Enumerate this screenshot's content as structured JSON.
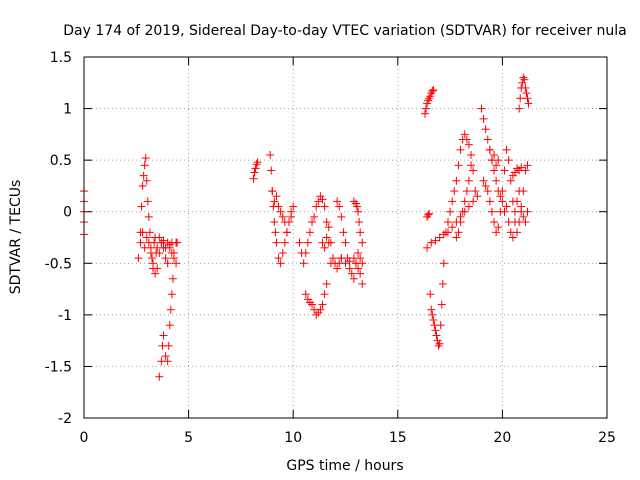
{
  "chart_data": {
    "type": "scatter",
    "title": "Day 174 of 2019, Sidereal Day-to-day VTEC variation (SDTVAR) for receiver nula",
    "xlabel": "GPS time / hours",
    "ylabel": "SDTVAR / TECUs",
    "xlim": [
      0,
      25
    ],
    "ylim": [
      -2,
      1.5
    ],
    "grid": true,
    "x_ticks": [
      0,
      5,
      10,
      15,
      20,
      25
    ],
    "y_ticks": [
      -2,
      -1.5,
      -1,
      -0.5,
      0,
      0.5,
      1,
      1.5
    ],
    "x_tick_labels": [
      "0",
      "5",
      "10",
      "15",
      "20",
      "25"
    ],
    "y_tick_labels": [
      "-2",
      "-1.5",
      "-1",
      "-0.5",
      "0",
      "0.5",
      "1",
      "1.5"
    ],
    "marker": "plus",
    "series": [
      {
        "name": "SDTVAR",
        "color": "#ff0000",
        "segments": [
          {
            "x": [
              0.0,
              0.0,
              0.0,
              0.0,
              0.0
            ],
            "y": [
              0.2,
              0.1,
              0.0,
              -0.1,
              -0.22
            ]
          },
          {
            "x": [
              2.6,
              2.7,
              2.75,
              2.8,
              2.85,
              2.9,
              2.95,
              3.0,
              3.05,
              3.1,
              3.15,
              3.2,
              3.25,
              3.3,
              3.35,
              3.4,
              3.45
            ],
            "y": [
              -0.45,
              -0.2,
              0.05,
              0.25,
              0.35,
              0.45,
              0.52,
              0.3,
              0.1,
              -0.05,
              -0.2,
              -0.35,
              -0.45,
              -0.55,
              -0.3,
              -0.25,
              -0.4
            ]
          },
          {
            "x": [
              2.7,
              2.8,
              2.9,
              3.0,
              3.1,
              3.2,
              3.3,
              3.4,
              3.5,
              3.6,
              3.7,
              3.8,
              3.9,
              4.0,
              4.1,
              4.2,
              4.3,
              4.4,
              4.45
            ],
            "y": [
              -0.3,
              -0.2,
              -0.35,
              -0.25,
              -0.3,
              -0.4,
              -0.5,
              -0.6,
              -0.55,
              -0.4,
              -0.3,
              -0.35,
              -0.45,
              -0.5,
              -0.35,
              -0.3,
              -0.4,
              -0.5,
              -0.3
            ]
          },
          {
            "x": [
              3.6,
              3.7,
              3.75,
              3.8,
              3.9,
              4.0,
              4.05,
              4.1,
              4.15,
              4.2,
              4.25
            ],
            "y": [
              -1.6,
              -1.45,
              -1.3,
              -1.2,
              -1.4,
              -1.45,
              -1.3,
              -1.1,
              -0.95,
              -0.8,
              -0.65
            ]
          },
          {
            "x": [
              3.5,
              3.6,
              3.7,
              3.8,
              3.9,
              4.0,
              4.1,
              4.2,
              4.3,
              4.4
            ],
            "y": [
              -0.35,
              -0.25,
              -0.3,
              -0.28,
              -0.35,
              -0.3,
              -0.32,
              -0.4,
              -0.45,
              -0.3
            ]
          },
          {
            "x": [
              8.1,
              8.15,
              8.2,
              8.25,
              8.3
            ],
            "y": [
              0.32,
              0.38,
              0.42,
              0.46,
              0.48
            ]
          },
          {
            "x": [
              8.9,
              8.95,
              9.0,
              9.05,
              9.1,
              9.15,
              9.2,
              9.3,
              9.4,
              9.5,
              9.6,
              9.7,
              9.8,
              9.9
            ],
            "y": [
              0.55,
              0.4,
              0.2,
              0.05,
              -0.1,
              -0.2,
              -0.3,
              -0.45,
              -0.5,
              -0.4,
              -0.3,
              -0.2,
              -0.1,
              -0.05
            ]
          },
          {
            "x": [
              9.0,
              9.1,
              9.2,
              9.3,
              9.4,
              9.5,
              9.6,
              9.7,
              9.8,
              9.9,
              10.0
            ],
            "y": [
              0.2,
              0.1,
              0.15,
              0.05,
              0.0,
              -0.05,
              -0.1,
              -0.2,
              -0.1,
              0.0,
              0.05
            ]
          },
          {
            "x": [
              10.3,
              10.4,
              10.5,
              10.6,
              10.7,
              10.8,
              10.9,
              11.0,
              11.1,
              11.2,
              11.3,
              11.4,
              11.5,
              11.6,
              11.7,
              11.8
            ],
            "y": [
              -0.3,
              -0.4,
              -0.5,
              -0.4,
              -0.3,
              -0.2,
              -0.1,
              -0.05,
              0.05,
              0.1,
              0.15,
              0.12,
              0.05,
              -0.1,
              -0.3,
              -0.5
            ]
          },
          {
            "x": [
              10.6,
              10.7,
              10.8,
              10.9,
              11.0,
              11.1,
              11.2,
              11.3,
              11.4,
              11.5,
              11.6
            ],
            "y": [
              -0.8,
              -0.85,
              -0.88,
              -0.9,
              -0.95,
              -1.0,
              -0.98,
              -0.95,
              -0.9,
              -0.8,
              -0.7
            ]
          },
          {
            "x": [
              11.4,
              11.5,
              11.6,
              11.7,
              11.8,
              11.9,
              12.0,
              12.1,
              12.2,
              12.3
            ],
            "y": [
              -0.3,
              -0.35,
              -0.25,
              -0.15,
              -0.3,
              -0.45,
              -0.5,
              -0.55,
              -0.5,
              -0.45
            ]
          },
          {
            "x": [
              12.1,
              12.2,
              12.3,
              12.4,
              12.5,
              12.6,
              12.7,
              12.8,
              12.9,
              13.0,
              13.1,
              13.2,
              13.3
            ],
            "y": [
              0.1,
              0.05,
              -0.05,
              -0.2,
              -0.3,
              -0.45,
              -0.55,
              -0.6,
              -0.65,
              -0.5,
              -0.4,
              -0.6,
              -0.7
            ]
          },
          {
            "x": [
              12.3,
              12.5,
              12.7,
              12.9,
              13.0,
              13.1,
              13.2,
              13.3
            ],
            "y": [
              -0.45,
              -0.5,
              -0.48,
              -0.45,
              -0.5,
              -0.55,
              -0.45,
              -0.5
            ]
          },
          {
            "x": [
              12.9,
              13.0,
              13.05,
              13.1,
              13.15,
              13.2,
              13.3
            ],
            "y": [
              0.1,
              0.08,
              0.05,
              0.0,
              -0.1,
              -0.2,
              -0.3
            ]
          },
          {
            "x": [
              16.3,
              16.35,
              16.4,
              16.45,
              16.5,
              16.55,
              16.6,
              16.65,
              16.7
            ],
            "y": [
              0.95,
              1.0,
              1.05,
              1.08,
              1.1,
              1.12,
              1.15,
              1.17,
              1.18
            ]
          },
          {
            "x": [
              16.4,
              16.45,
              16.5,
              16.55,
              16.6,
              16.65,
              16.7,
              16.75,
              16.8,
              16.85,
              16.9,
              16.95,
              17.0,
              17.05,
              17.1,
              17.15,
              17.2
            ],
            "y": [
              -0.05,
              -0.03,
              -0.02,
              -0.8,
              -0.95,
              -1.0,
              -1.05,
              -1.1,
              -1.15,
              -1.2,
              -1.25,
              -1.3,
              -1.28,
              -1.1,
              -0.9,
              -0.7,
              -0.5
            ]
          },
          {
            "x": [
              16.4,
              16.6,
              16.8,
              17.0,
              17.2,
              17.4,
              17.6,
              17.8,
              18.0,
              18.2,
              18.4,
              18.6,
              18.8
            ],
            "y": [
              -0.35,
              -0.3,
              -0.28,
              -0.25,
              -0.22,
              -0.2,
              -0.15,
              -0.1,
              -0.05,
              0.0,
              0.05,
              0.1,
              0.15
            ]
          },
          {
            "x": [
              17.3,
              17.4,
              17.5,
              17.6,
              17.7,
              17.8,
              17.9,
              18.0,
              18.1,
              18.2,
              18.3,
              18.4,
              18.5
            ],
            "y": [
              -0.2,
              -0.1,
              0.0,
              0.1,
              0.2,
              0.3,
              0.45,
              0.6,
              0.7,
              0.75,
              0.7,
              0.65,
              0.55
            ]
          },
          {
            "x": [
              17.8,
              17.9,
              18.0,
              18.1,
              18.2,
              18.3,
              18.4,
              18.5,
              18.6,
              18.7
            ],
            "y": [
              -0.25,
              -0.2,
              -0.1,
              0.0,
              0.1,
              0.2,
              0.3,
              0.45,
              0.4,
              0.2
            ]
          },
          {
            "x": [
              19.0,
              19.1,
              19.2,
              19.3,
              19.4,
              19.5,
              19.6,
              19.7,
              19.8,
              19.9
            ],
            "y": [
              1.0,
              0.9,
              0.8,
              0.7,
              0.6,
              0.5,
              0.4,
              0.3,
              0.2,
              0.15
            ]
          },
          {
            "x": [
              19.1,
              19.2,
              19.3,
              19.4,
              19.5,
              19.6,
              19.7,
              19.8,
              19.9,
              20.0
            ],
            "y": [
              0.3,
              0.25,
              0.2,
              0.1,
              0.0,
              -0.1,
              -0.2,
              -0.15,
              0.0,
              0.1
            ]
          },
          {
            "x": [
              19.4,
              19.5,
              19.6,
              19.7,
              19.8
            ],
            "y": [
              0.6,
              0.5,
              0.55,
              0.45,
              0.5
            ]
          },
          {
            "x": [
              20.0,
              20.1,
              20.2,
              20.3,
              20.4,
              20.5,
              20.6,
              20.7,
              20.8,
              20.9,
              21.0,
              21.1,
              21.2
            ],
            "y": [
              0.2,
              0.4,
              0.6,
              0.5,
              0.3,
              0.1,
              -0.1,
              -0.2,
              -0.1,
              0.0,
              0.2,
              0.4,
              0.45
            ]
          },
          {
            "x": [
              20.1,
              20.2,
              20.3,
              20.4,
              20.5,
              20.6,
              20.7,
              20.8,
              20.9,
              21.0,
              21.1,
              21.2
            ],
            "y": [
              0.0,
              0.05,
              -0.1,
              -0.2,
              -0.25,
              0.0,
              0.1,
              0.2,
              0.05,
              -0.05,
              -0.1,
              0.0
            ]
          },
          {
            "x": [
              20.5,
              20.6,
              20.7,
              20.8,
              20.9
            ],
            "y": [
              0.35,
              0.38,
              0.42,
              0.4,
              0.43
            ]
          },
          {
            "x": [
              20.8,
              20.85,
              20.9,
              20.95,
              21.0,
              21.05,
              21.1,
              21.15,
              21.2,
              21.25
            ],
            "y": [
              1.0,
              1.1,
              1.2,
              1.25,
              1.3,
              1.28,
              1.2,
              1.15,
              1.1,
              1.05
            ]
          }
        ]
      }
    ]
  }
}
